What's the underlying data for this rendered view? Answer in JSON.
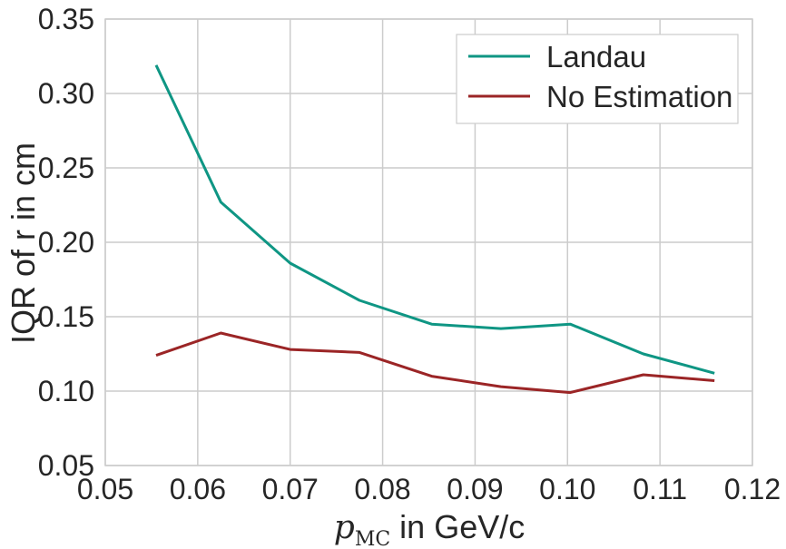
{
  "chart_data": {
    "type": "line",
    "xlabel_math": "p",
    "xlabel_sub": "MC",
    "xlabel_rest": " in GeV/c",
    "ylabel": "IQR of r in cm",
    "xlim": [
      0.05,
      0.12
    ],
    "ylim": [
      0.05,
      0.35
    ],
    "xticks": [
      0.05,
      0.06,
      0.07,
      0.08,
      0.09,
      0.1,
      0.11,
      0.12
    ],
    "yticks": [
      0.05,
      0.1,
      0.15,
      0.2,
      0.25,
      0.3,
      0.35
    ],
    "xtick_labels": [
      "0.05",
      "0.06",
      "0.07",
      "0.08",
      "0.09",
      "0.10",
      "0.11",
      "0.12"
    ],
    "ytick_labels": [
      "0.05",
      "0.10",
      "0.15",
      "0.20",
      "0.25",
      "0.30",
      "0.35"
    ],
    "grid": true,
    "legend_position": "top-right",
    "series": [
      {
        "name": "Landau",
        "color": "#0f9684",
        "x": [
          0.0555,
          0.0625,
          0.07,
          0.0775,
          0.0853,
          0.0928,
          0.1003,
          0.1082,
          0.1159
        ],
        "y": [
          0.319,
          0.227,
          0.186,
          0.161,
          0.145,
          0.142,
          0.145,
          0.125,
          0.112
        ]
      },
      {
        "name": "No Estimation",
        "color": "#9b2526",
        "x": [
          0.0555,
          0.0625,
          0.07,
          0.0775,
          0.0853,
          0.0928,
          0.1003,
          0.1082,
          0.1159
        ],
        "y": [
          0.124,
          0.139,
          0.128,
          0.126,
          0.11,
          0.103,
          0.099,
          0.111,
          0.107
        ]
      }
    ]
  }
}
